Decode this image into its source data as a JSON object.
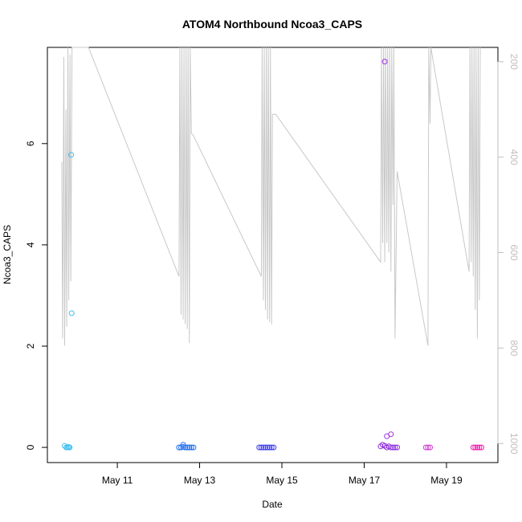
{
  "chart_data": {
    "type": "scatter",
    "title": "ATOM4 Northbound Ncoa3_CAPS",
    "xlabel": "Date",
    "ylabel": "Ncoa3_CAPS",
    "x_ticks": [
      "May 11",
      "May 13",
      "May 15",
      "May 17",
      "May 19"
    ],
    "x_tick_days": [
      11,
      13,
      15,
      17,
      19
    ],
    "xlim_days": [
      9.3,
      20.25
    ],
    "ylim": [
      -0.3,
      7.9
    ],
    "y_ticks": [
      0,
      2,
      4,
      6
    ],
    "right_axis": {
      "reversed": true,
      "ticks": [
        200,
        400,
        600,
        800,
        1000
      ],
      "lim": [
        1040,
        170
      ],
      "color": "#bfbfbf"
    },
    "grid": false,
    "legend": "none",
    "points": {
      "x_days": [
        9.72,
        9.76,
        9.79,
        9.82,
        9.84,
        9.88,
        9.89,
        12.5,
        12.55,
        12.6,
        12.65,
        12.7,
        12.75,
        12.8,
        12.85,
        12.6,
        14.45,
        14.5,
        14.55,
        14.6,
        14.65,
        14.7,
        14.75,
        14.8,
        17.4,
        17.45,
        17.5,
        17.55,
        17.6,
        17.65,
        17.7,
        17.75,
        17.8,
        17.55,
        17.65,
        17.5,
        18.5,
        18.55,
        18.6,
        19.65,
        19.7,
        19.75,
        19.8,
        19.85
      ],
      "y": [
        0.03,
        0.0,
        0.0,
        0.01,
        0.0,
        5.78,
        2.65,
        0.0,
        0.0,
        0.01,
        0.0,
        0.0,
        0.0,
        0.0,
        0.0,
        0.05,
        0.0,
        0.0,
        0.0,
        0.0,
        0.0,
        0.0,
        0.0,
        0.0,
        0.02,
        0.05,
        0.03,
        0.0,
        0.02,
        0.0,
        0.0,
        0.0,
        0.0,
        0.22,
        0.26,
        7.62,
        0.0,
        0.0,
        0.0,
        0.0,
        0.0,
        0.0,
        0.0,
        0.0
      ],
      "colors": [
        "#3fbfef",
        "#3fbfef",
        "#3fbfef",
        "#3fbfef",
        "#3fbfef",
        "#3fbfef",
        "#3fbfef",
        "#1f6fef",
        "#1f6fef",
        "#1f6fef",
        "#1f6fef",
        "#1f6fef",
        "#1f6fef",
        "#1f6fef",
        "#1f6fef",
        "#1f6fef",
        "#3f3fef",
        "#3f3fef",
        "#3f3fef",
        "#3f3fef",
        "#3f3fef",
        "#3f3fef",
        "#3f3fef",
        "#3f3fef",
        "#8f2fdf",
        "#8f2fdf",
        "#8f2fdf",
        "#8f2fdf",
        "#8f2fdf",
        "#8f2fdf",
        "#8f2fdf",
        "#8f2fdf",
        "#8f2fdf",
        "#9f2fdf",
        "#9f2fdf",
        "#9f2fdf",
        "#cf3fcf",
        "#cf3fcf",
        "#cf3fcf",
        "#ef1faf",
        "#ef1faf",
        "#ef1faf",
        "#ef1faf",
        "#ef1faf"
      ]
    },
    "line_series": {
      "color": "#c8c8c8",
      "x_days": [
        9.65,
        9.67,
        9.7,
        9.72,
        9.75,
        9.77,
        9.8,
        9.82,
        9.85,
        9.87,
        9.9,
        10.3,
        12.5,
        12.52,
        12.55,
        12.57,
        12.6,
        12.62,
        12.65,
        12.67,
        12.7,
        12.72,
        12.75,
        12.77,
        12.8,
        12.85,
        14.5,
        14.52,
        14.55,
        14.57,
        14.6,
        14.62,
        14.65,
        14.67,
        14.7,
        14.72,
        14.75,
        14.77,
        14.85,
        17.4,
        17.42,
        17.45,
        17.47,
        17.5,
        17.52,
        17.55,
        17.57,
        17.6,
        17.62,
        17.65,
        17.67,
        17.7,
        17.72,
        17.75,
        17.8,
        18.55,
        18.57,
        18.6,
        18.62,
        19.55,
        19.57,
        19.6,
        19.62,
        19.65,
        19.67,
        19.7,
        19.72,
        19.75,
        19.77,
        19.8,
        19.82
      ],
      "y_right": [
        410,
        780,
        190,
        795,
        300,
        755,
        170,
        700,
        185,
        660,
        170,
        170,
        650,
        170,
        730,
        170,
        740,
        170,
        750,
        170,
        760,
        170,
        790,
        170,
        350,
        355,
        650,
        170,
        700,
        170,
        720,
        170,
        740,
        170,
        745,
        170,
        750,
        310,
        310,
        620,
        170,
        580,
        170,
        620,
        170,
        580,
        170,
        600,
        170,
        640,
        170,
        500,
        170,
        780,
        430,
        795,
        170,
        330,
        170,
        640,
        170,
        620,
        170,
        650,
        170,
        720,
        170,
        780,
        170,
        700,
        170
      ]
    }
  }
}
